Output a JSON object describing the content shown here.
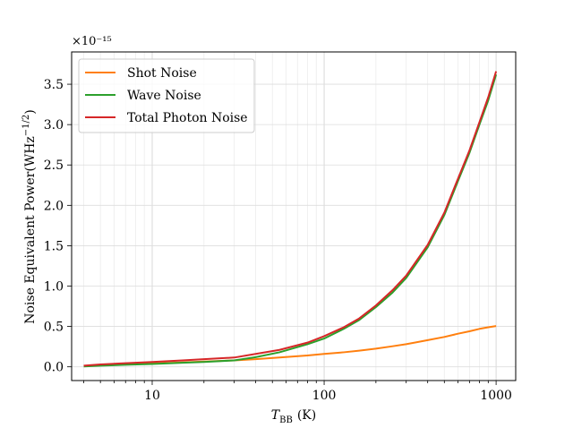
{
  "chart_data": {
    "type": "line",
    "xscale": "log",
    "xlim": [
      3.4,
      1300
    ],
    "ylim": [
      -0.17,
      3.9
    ],
    "y_multiplier_label": "×10⁻¹⁵",
    "xlabel": "T_BB (K)",
    "xlabel_main": "T",
    "xlabel_sub": "BB",
    "xlabel_unit": "(K)",
    "ylabel": "Noise Equivalent Power(WHz⁻¹⁄²)",
    "ylabel_main": "Noise Equivalent Power(WHz",
    "ylabel_sup": "−1/2",
    "ylabel_close": ")",
    "grid": true,
    "legend_position": "top-left",
    "x_ticks": [
      10,
      100,
      1000
    ],
    "x_tick_labels": [
      "10",
      "100",
      "1000"
    ],
    "y_ticks": [
      0.0,
      0.5,
      1.0,
      1.5,
      2.0,
      2.5,
      3.0,
      3.5
    ],
    "y_tick_labels": [
      "0.0",
      "0.5",
      "1.0",
      "1.5",
      "2.0",
      "2.5",
      "3.0",
      "3.5"
    ],
    "x": [
      4,
      5,
      7,
      10,
      15,
      20,
      30,
      40,
      55,
      80,
      100,
      130,
      160,
      200,
      250,
      300,
      400,
      500,
      600,
      700,
      800,
      900,
      1000
    ],
    "series": [
      {
        "name": "Shot Noise",
        "color": "#ff7f0e",
        "values": [
          0.01,
          0.02,
          0.03,
          0.04,
          0.055,
          0.065,
          0.08,
          0.095,
          0.115,
          0.14,
          0.16,
          0.18,
          0.2,
          0.225,
          0.255,
          0.28,
          0.33,
          0.37,
          0.41,
          0.44,
          0.47,
          0.49,
          0.505
        ]
      },
      {
        "name": "Wave Noise",
        "color": "#2ca02c",
        "values": [
          0.005,
          0.015,
          0.025,
          0.035,
          0.05,
          0.06,
          0.08,
          0.12,
          0.18,
          0.28,
          0.35,
          0.47,
          0.58,
          0.74,
          0.92,
          1.1,
          1.48,
          1.88,
          2.3,
          2.65,
          3.0,
          3.3,
          3.62
        ]
      },
      {
        "name": "Total Photon Noise",
        "color": "#d62728",
        "values": [
          0.015,
          0.03,
          0.045,
          0.06,
          0.08,
          0.095,
          0.115,
          0.16,
          0.21,
          0.3,
          0.38,
          0.49,
          0.6,
          0.76,
          0.95,
          1.13,
          1.51,
          1.91,
          2.33,
          2.68,
          3.03,
          3.34,
          3.66
        ]
      }
    ]
  }
}
